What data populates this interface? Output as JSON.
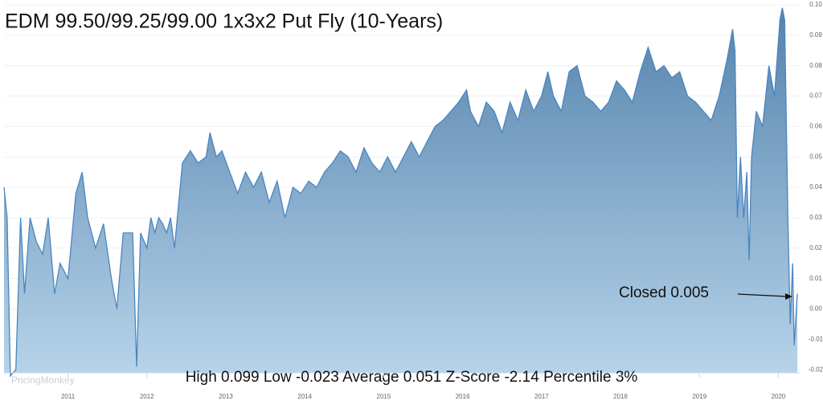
{
  "chart_data": {
    "type": "area",
    "title": "EDM 99.50/99.25/99.00 1x3x2 Put Fly (10-Years)",
    "annotation": "Closed 0.005",
    "stats": "High 0.099 Low -0.023 Average 0.051 Z-Score -2.14 Percentile 3%",
    "watermark": "PricingMonkey",
    "xlim": [
      2010.19,
      2020.27
    ],
    "xticks": [
      2011,
      2012,
      2013,
      2014,
      2015,
      2016,
      2017,
      2018,
      2019,
      2020
    ],
    "ylim": [
      -0.021,
      0.1
    ],
    "yticks": [
      {
        "value": -0.02,
        "label": "-0.02"
      },
      {
        "value": -0.01,
        "label": "-0.01"
      },
      {
        "value": 0,
        "label": "0.00"
      },
      {
        "value": 0.01,
        "label": "0.01"
      },
      {
        "value": 0.02,
        "label": "0.02"
      },
      {
        "value": 0.03,
        "label": "0.03"
      },
      {
        "value": 0.04,
        "label": "0.04"
      },
      {
        "value": 0.05,
        "label": "0.05"
      },
      {
        "value": 0.06,
        "label": "0.06"
      },
      {
        "value": 0.07,
        "label": "0.07"
      },
      {
        "value": 0.08,
        "label": "0.08"
      },
      {
        "value": 0.09,
        "label": "0.09"
      },
      {
        "value": 0.1,
        "label": "0.10"
      }
    ],
    "grid": true,
    "color": "#4a86c0",
    "x": [
      2010.19,
      2010.23,
      2010.27,
      2010.34,
      2010.4,
      2010.45,
      2010.52,
      2010.6,
      2010.68,
      2010.75,
      2010.83,
      2010.9,
      2011.0,
      2011.1,
      2011.18,
      2011.25,
      2011.35,
      2011.45,
      2011.55,
      2011.62,
      2011.7,
      2011.82,
      2011.87,
      2011.92,
      2012.0,
      2012.05,
      2012.1,
      2012.15,
      2012.2,
      2012.25,
      2012.3,
      2012.35,
      2012.45,
      2012.55,
      2012.65,
      2012.75,
      2012.8,
      2012.88,
      2012.95,
      2013.05,
      2013.15,
      2013.25,
      2013.35,
      2013.45,
      2013.55,
      2013.65,
      2013.75,
      2013.85,
      2013.95,
      2014.05,
      2014.15,
      2014.25,
      2014.35,
      2014.45,
      2014.55,
      2014.65,
      2014.75,
      2014.85,
      2014.95,
      2015.05,
      2015.15,
      2015.25,
      2015.35,
      2015.45,
      2015.55,
      2015.65,
      2015.75,
      2015.85,
      2015.95,
      2016.05,
      2016.1,
      2016.2,
      2016.3,
      2016.4,
      2016.5,
      2016.6,
      2016.7,
      2016.8,
      2016.9,
      2017.0,
      2017.08,
      2017.15,
      2017.25,
      2017.35,
      2017.45,
      2017.55,
      2017.65,
      2017.75,
      2017.85,
      2017.95,
      2018.05,
      2018.15,
      2018.25,
      2018.35,
      2018.45,
      2018.55,
      2018.65,
      2018.75,
      2018.85,
      2018.95,
      2019.05,
      2019.15,
      2019.25,
      2019.35,
      2019.42,
      2019.45,
      2019.48,
      2019.52,
      2019.56,
      2019.6,
      2019.63,
      2019.66,
      2019.72,
      2019.8,
      2019.88,
      2019.95,
      2020.02,
      2020.05,
      2020.08,
      2020.12,
      2020.15,
      2020.18,
      2020.2,
      2020.24
    ],
    "values": [
      0.04,
      0.03,
      -0.022,
      -0.02,
      0.03,
      0.005,
      0.03,
      0.022,
      0.018,
      0.03,
      0.005,
      0.015,
      0.01,
      0.038,
      0.045,
      0.03,
      0.02,
      0.028,
      0.01,
      0.0,
      0.025,
      0.025,
      -0.019,
      0.025,
      0.02,
      0.03,
      0.025,
      0.03,
      0.028,
      0.025,
      0.03,
      0.02,
      0.048,
      0.052,
      0.048,
      0.05,
      0.058,
      0.05,
      0.052,
      0.045,
      0.038,
      0.045,
      0.04,
      0.045,
      0.035,
      0.042,
      0.03,
      0.04,
      0.038,
      0.042,
      0.04,
      0.045,
      0.048,
      0.052,
      0.05,
      0.045,
      0.053,
      0.048,
      0.045,
      0.05,
      0.045,
      0.05,
      0.055,
      0.05,
      0.055,
      0.06,
      0.062,
      0.065,
      0.068,
      0.072,
      0.065,
      0.06,
      0.068,
      0.065,
      0.058,
      0.068,
      0.062,
      0.072,
      0.065,
      0.07,
      0.078,
      0.07,
      0.065,
      0.078,
      0.08,
      0.07,
      0.068,
      0.065,
      0.068,
      0.075,
      0.072,
      0.068,
      0.078,
      0.086,
      0.078,
      0.08,
      0.076,
      0.078,
      0.07,
      0.068,
      0.065,
      0.062,
      0.07,
      0.082,
      0.092,
      0.085,
      0.03,
      0.05,
      0.03,
      0.045,
      0.016,
      0.05,
      0.065,
      0.06,
      0.08,
      0.07,
      0.095,
      0.099,
      0.095,
      0.03,
      -0.005,
      0.015,
      -0.012,
      0.005
    ]
  }
}
